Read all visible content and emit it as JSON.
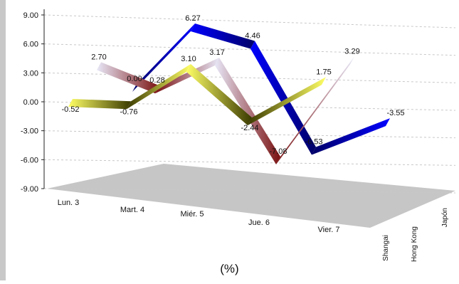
{
  "chart_data": {
    "type": "line",
    "style": "3d-ribbon",
    "caption": "(%)",
    "ylim": [
      -9.0,
      9.0
    ],
    "y_ticks": [
      "9.00",
      "6.00",
      "3.00",
      "0.00",
      "-3.00",
      "-6.00",
      "-9.00"
    ],
    "categories": [
      "Lun. 3",
      "Mart. 4",
      "Miér. 5",
      "Jue. 6",
      "Vier. 7"
    ],
    "series_labels": [
      "Shangai",
      "Hong Kong",
      "Japón"
    ],
    "series": [
      {
        "name": "Shangai",
        "values": [
          -0.52,
          -0.76,
          3.1,
          -2.44,
          1.75
        ],
        "value_labels": [
          "-0.52",
          "-0.76",
          "3.10",
          "-2.44",
          "1.75"
        ],
        "colors": {
          "light": "#ffff66",
          "dark": "#3a3a00"
        }
      },
      {
        "name": "Hong Kong",
        "values": [
          2.7,
          0.28,
          3.17,
          -7.08,
          3.29
        ],
        "value_labels": [
          "2.70",
          "0.28",
          "3.17",
          "-7.08",
          "3.29"
        ],
        "colors": {
          "light": "#e8e8f8",
          "dark": "#7a1010"
        }
      },
      {
        "name": "Japón",
        "values": [
          0.0,
          6.27,
          4.46,
          -6.53,
          -3.55
        ],
        "value_labels": [
          "0.00",
          "6.27",
          "4.46",
          "-6.53",
          "-3.55"
        ],
        "colors": {
          "light": "#0000ff",
          "dark": "#000066"
        }
      }
    ],
    "grid": true,
    "legend": "none"
  }
}
